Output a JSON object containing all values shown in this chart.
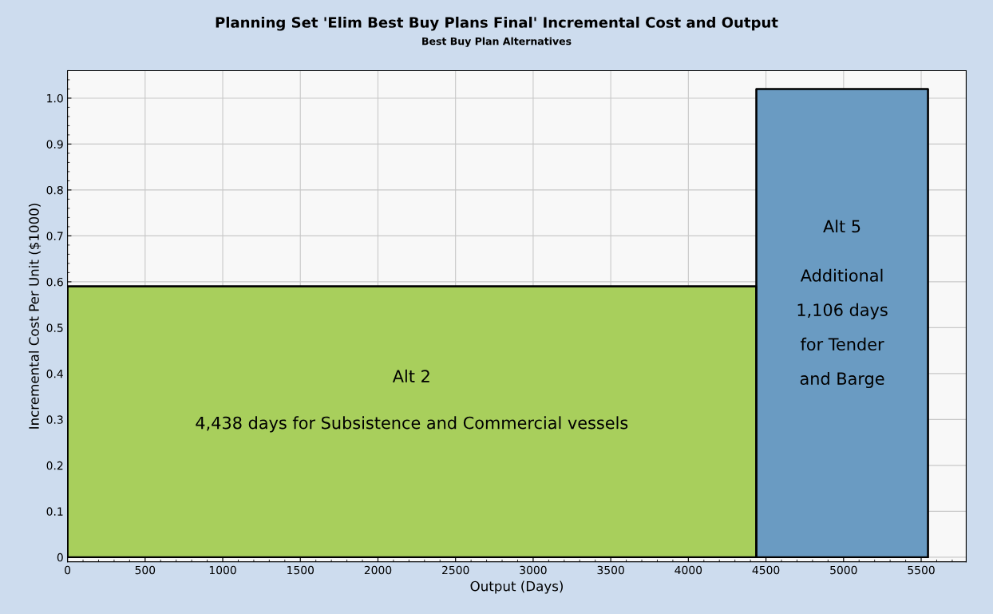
{
  "chart_data": {
    "type": "area",
    "title": "Planning Set 'Elim Best Buy Plans Final' Incremental Cost and Output",
    "subtitle": "Best Buy Plan Alternatives",
    "xlabel": "Output (Days)",
    "ylabel": "Incremental Cost Per Unit ($1000)",
    "series": [
      {
        "color": "#a8cf5c",
        "x": [
          0,
          4438
        ],
        "values": [
          0.59,
          0.59
        ]
      },
      {
        "color": "#6a9bc2",
        "x": [
          4438,
          5544
        ],
        "values": [
          1.02,
          1.02
        ]
      }
    ],
    "annotations": [
      "Alt 2",
      "4,438 days for Subsistence and Commercial vessels",
      "Alt 5",
      "Additional",
      "1,106 days",
      "for Tender",
      "and Barge"
    ],
    "xlim": [
      0,
      5790
    ],
    "xticks": [
      0,
      500,
      1000,
      1500,
      2000,
      2500,
      3000,
      3500,
      4000,
      4500,
      5000,
      5500
    ],
    "ylim": [
      -0.01,
      1.06
    ],
    "yticks": [
      {
        "value": 0,
        "label": "0"
      },
      0.1,
      0.2,
      0.3,
      0.4,
      0.5,
      0.6,
      0.7,
      0.8,
      0.9,
      {
        "value": 1,
        "label": "1.0"
      }
    ],
    "grid": true
  }
}
